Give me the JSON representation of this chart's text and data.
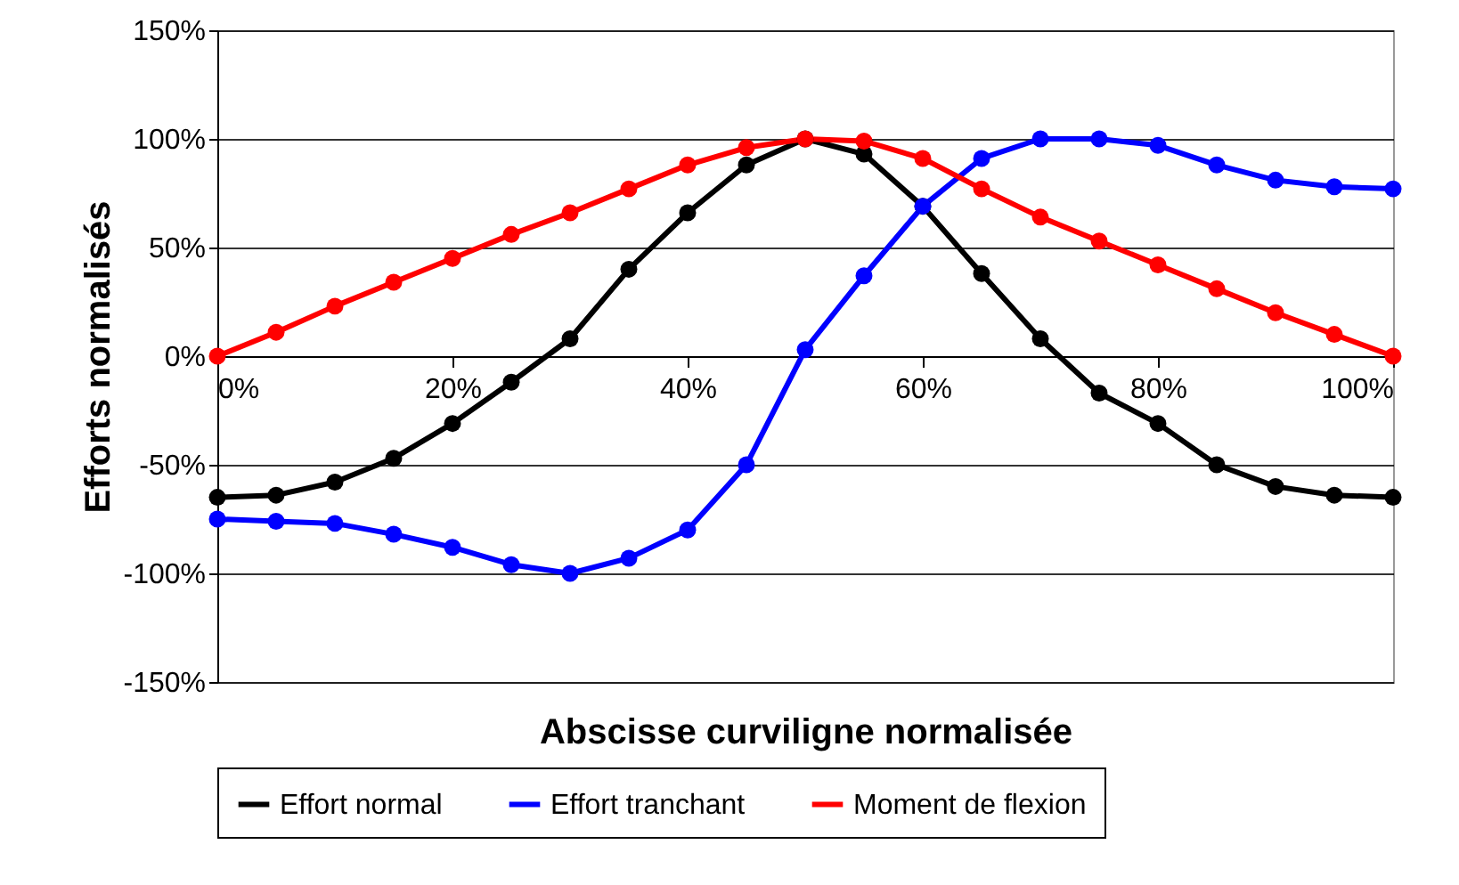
{
  "chart_data": {
    "type": "line",
    "xlabel": "Abscisse curviligne normalisée",
    "ylabel": "Efforts normalisés",
    "x": [
      0,
      5,
      10,
      15,
      20,
      25,
      30,
      35,
      40,
      45,
      50,
      55,
      60,
      65,
      70,
      75,
      80,
      85,
      90,
      95,
      100
    ],
    "series": [
      {
        "name": "Effort normal",
        "color": "#000000",
        "values": [
          -65,
          -64,
          -58,
          -47,
          -31,
          -12,
          8,
          40,
          66,
          88,
          100,
          93,
          69,
          38,
          8,
          -17,
          -31,
          -50,
          -60,
          -64,
          -65
        ]
      },
      {
        "name": "Effort tranchant",
        "color": "#0000ff",
        "values": [
          -75,
          -76,
          -77,
          -82,
          -88,
          -96,
          -100,
          -93,
          -80,
          -50,
          3,
          37,
          69,
          91,
          100,
          100,
          97,
          88,
          81,
          78,
          77
        ]
      },
      {
        "name": "Moment de flexion",
        "color": "#ff0000",
        "values": [
          0,
          11,
          23,
          34,
          45,
          56,
          66,
          77,
          88,
          96,
          100,
          99,
          91,
          77,
          64,
          53,
          42,
          31,
          20,
          10,
          0
        ]
      }
    ],
    "xlim": [
      0,
      100
    ],
    "xticks": [
      {
        "value": 0,
        "label": "0%"
      },
      {
        "value": 20,
        "label": "20%"
      },
      {
        "value": 40,
        "label": "40%"
      },
      {
        "value": 60,
        "label": "60%"
      },
      {
        "value": 80,
        "label": "80%"
      },
      {
        "value": 100,
        "label": "100%"
      }
    ],
    "ylim": [
      -150,
      150
    ],
    "yticks": [
      {
        "value": -150,
        "label": "-150%"
      },
      {
        "value": -100,
        "label": "-100%"
      },
      {
        "value": -50,
        "label": "-50%"
      },
      {
        "value": 0,
        "label": "0%"
      },
      {
        "value": 50,
        "label": "50%"
      },
      {
        "value": 100,
        "label": "100%"
      },
      {
        "value": 150,
        "label": "150%"
      }
    ],
    "grid": "y",
    "legend": "bottom",
    "marker": "circle",
    "line_style": "solid"
  }
}
